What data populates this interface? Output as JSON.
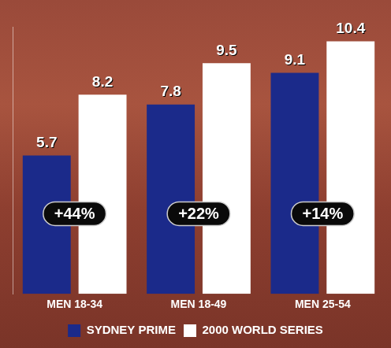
{
  "chart_data": {
    "type": "bar",
    "categories": [
      "MEN 18-34",
      "MEN 18-49",
      "MEN 25-54"
    ],
    "series": [
      {
        "name": "SYDNEY PRIME",
        "color": "#1b2a8a",
        "values": [
          5.7,
          7.8,
          9.1
        ]
      },
      {
        "name": "2000 WORLD SERIES",
        "color": "#ffffff",
        "values": [
          8.2,
          9.5,
          10.4
        ]
      }
    ],
    "annotations": [
      "+44%",
      "+22%",
      "+14%"
    ],
    "ylim": [
      0,
      11
    ],
    "tick_labels": "x",
    "grid": false,
    "legend": "bottom",
    "data_labels": true
  }
}
